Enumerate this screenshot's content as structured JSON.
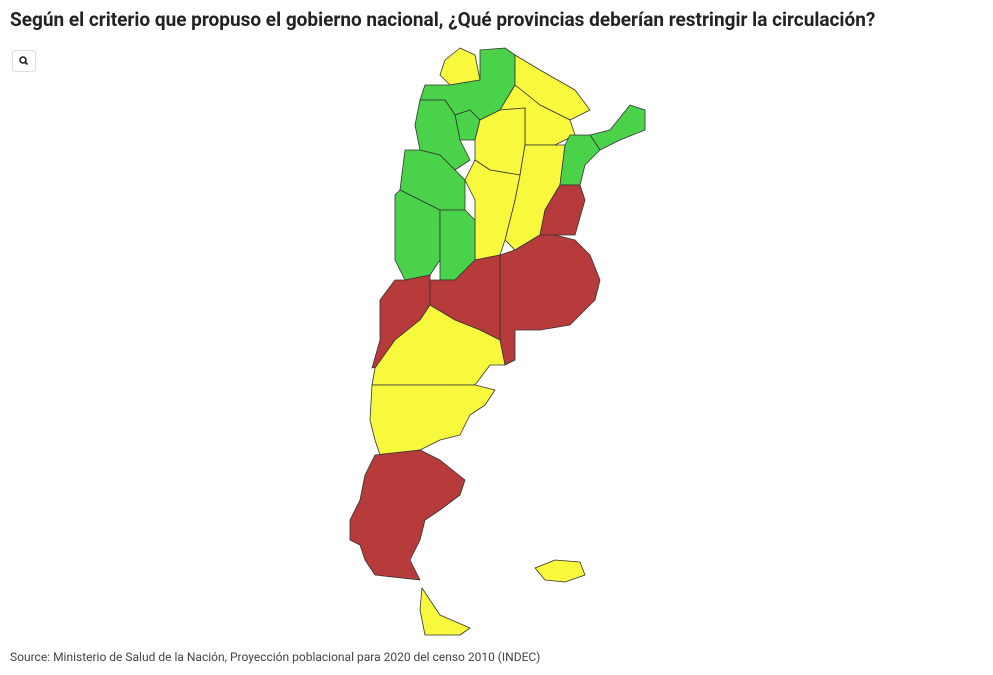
{
  "header": {
    "title": "Según el criterio que propuso el gobierno nacional, ¿Qué provincias deberían restringir la circulación?"
  },
  "footer": {
    "source": "Source: Ministerio de Salud de la Nación, Proyección poblacional para 2020 del censo 2010 (INDEC)"
  }
}
